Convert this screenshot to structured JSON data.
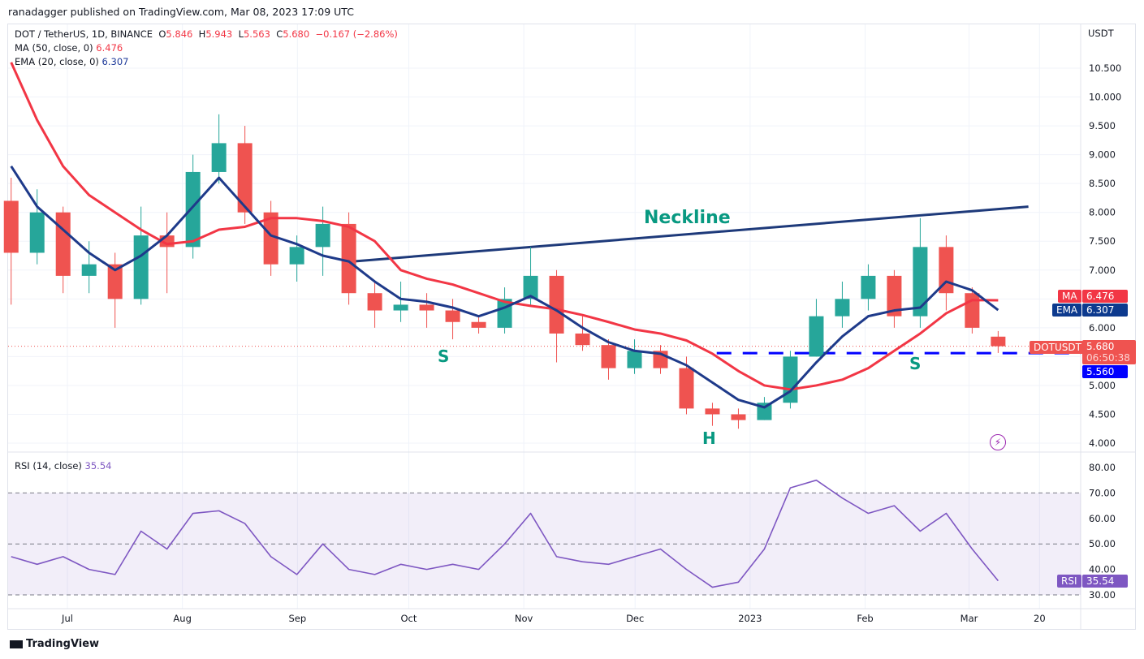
{
  "header": {
    "publisher": "ranadagger published on TradingView.com, Mar 08, 2023 17:09 UTC"
  },
  "legend": {
    "symbol": "DOT / TetherUS, 1D, BINANCE",
    "o_label": "O",
    "o": "5.846",
    "h_label": "H",
    "h": "5.943",
    "l_label": "L",
    "l": "5.563",
    "c_label": "C",
    "c": "5.680",
    "change": "−0.167 (−2.86%)",
    "ma_label": "MA (50, close, 0)",
    "ma_value": "6.476",
    "ema_label": "EMA (20, close, 0)",
    "ema_value": "6.307",
    "rsi_label": "RSI (14, close)",
    "rsi_value": "35.54"
  },
  "axis": {
    "currency": "USDT",
    "price_ticks": [
      "4.000",
      "4.500",
      "5.000",
      "6.000",
      "7.000",
      "7.500",
      "8.000",
      "8.500",
      "9.000",
      "9.500",
      "10.000",
      "10.500"
    ],
    "rsi_ticks": [
      "30.00",
      "40.00",
      "50.00",
      "60.00",
      "70.00",
      "80.00"
    ],
    "time_labels": [
      {
        "date": "2022-07-01",
        "label": "Jul"
      },
      {
        "date": "2022-08-01",
        "label": "Aug"
      },
      {
        "date": "2022-09-01",
        "label": "Sep"
      },
      {
        "date": "2022-10-01",
        "label": "Oct"
      },
      {
        "date": "2022-11-01",
        "label": "Nov"
      },
      {
        "date": "2022-12-01",
        "label": "Dec"
      },
      {
        "date": "2023-01-01",
        "label": "2023"
      },
      {
        "date": "2023-02-01",
        "label": "Feb"
      },
      {
        "date": "2023-03-01",
        "label": "Mar"
      },
      {
        "date": "2023-03-20",
        "label": "20"
      }
    ]
  },
  "tags": {
    "ma": "MA",
    "ma_value": "6.476",
    "ema": "EMA",
    "ema_value": "6.307",
    "symbol": "DOTUSDT",
    "price": "5.680",
    "countdown": "06:50:38",
    "support": "5.560",
    "rsi": "RSI",
    "rsi_value": "35.54"
  },
  "annotations": {
    "neckline": "Neckline",
    "s_left": "S",
    "h": "H",
    "s_right": "S"
  },
  "footer": {
    "brand": "TradingView"
  },
  "colors": {
    "up": "#26a69a",
    "down": "#ef5350",
    "ma": "#f23645",
    "ema": "#1e3a8a",
    "rsi": "#7e57c2",
    "support": "#0000ff",
    "neckline": "#1e3a7a",
    "annotation": "#089981"
  },
  "chart_data": {
    "type": "candlestick",
    "interval_shown": "weekly approximation of 1D candles",
    "ylim": [
      4.0,
      10.8
    ],
    "rsi_ylim": [
      28,
      84
    ],
    "weeks": [
      "2022-06-13",
      "2022-06-20",
      "2022-06-27",
      "2022-07-04",
      "2022-07-11",
      "2022-07-18",
      "2022-07-25",
      "2022-08-01",
      "2022-08-08",
      "2022-08-15",
      "2022-08-22",
      "2022-08-29",
      "2022-09-05",
      "2022-09-12",
      "2022-09-19",
      "2022-09-26",
      "2022-10-03",
      "2022-10-10",
      "2022-10-17",
      "2022-10-24",
      "2022-10-31",
      "2022-11-07",
      "2022-11-14",
      "2022-11-21",
      "2022-11-28",
      "2022-12-05",
      "2022-12-12",
      "2022-12-19",
      "2022-12-26",
      "2023-01-02",
      "2023-01-09",
      "2023-01-16",
      "2023-01-23",
      "2023-01-30",
      "2023-02-06",
      "2023-02-13",
      "2023-02-20",
      "2023-02-27",
      "2023-03-06"
    ],
    "ohlc": [
      [
        8.2,
        8.6,
        6.4,
        7.3
      ],
      [
        7.3,
        8.4,
        7.1,
        8.0
      ],
      [
        8.0,
        8.1,
        6.6,
        6.9
      ],
      [
        6.9,
        7.5,
        6.6,
        7.1
      ],
      [
        7.1,
        7.3,
        6.0,
        6.5
      ],
      [
        6.5,
        8.1,
        6.4,
        7.6
      ],
      [
        7.6,
        8.0,
        6.6,
        7.4
      ],
      [
        7.4,
        9.0,
        7.2,
        8.7
      ],
      [
        8.7,
        9.7,
        8.5,
        9.2
      ],
      [
        9.2,
        9.5,
        7.8,
        8.0
      ],
      [
        8.0,
        8.2,
        6.9,
        7.1
      ],
      [
        7.1,
        7.6,
        6.8,
        7.4
      ],
      [
        7.4,
        8.1,
        6.9,
        7.8
      ],
      [
        7.8,
        8.0,
        6.4,
        6.6
      ],
      [
        6.6,
        6.8,
        6.0,
        6.3
      ],
      [
        6.3,
        6.8,
        6.1,
        6.4
      ],
      [
        6.4,
        6.6,
        6.0,
        6.3
      ],
      [
        6.3,
        6.5,
        5.8,
        6.1
      ],
      [
        6.1,
        6.2,
        5.9,
        6.0
      ],
      [
        6.0,
        6.7,
        5.9,
        6.5
      ],
      [
        6.5,
        7.4,
        6.4,
        6.9
      ],
      [
        6.9,
        7.0,
        5.4,
        5.9
      ],
      [
        5.9,
        6.2,
        5.6,
        5.7
      ],
      [
        5.7,
        5.8,
        5.1,
        5.3
      ],
      [
        5.3,
        5.8,
        5.2,
        5.6
      ],
      [
        5.6,
        5.7,
        5.2,
        5.3
      ],
      [
        5.3,
        5.5,
        4.5,
        4.6
      ],
      [
        4.6,
        4.7,
        4.3,
        4.5
      ],
      [
        4.5,
        4.6,
        4.25,
        4.4
      ],
      [
        4.4,
        4.8,
        4.4,
        4.7
      ],
      [
        4.7,
        5.6,
        4.6,
        5.5
      ],
      [
        5.5,
        6.5,
        5.5,
        6.2
      ],
      [
        6.2,
        6.8,
        6.0,
        6.5
      ],
      [
        6.5,
        7.1,
        6.3,
        6.9
      ],
      [
        6.9,
        7.0,
        6.0,
        6.2
      ],
      [
        6.2,
        7.9,
        6.0,
        7.4
      ],
      [
        7.4,
        7.6,
        6.3,
        6.6
      ],
      [
        6.6,
        6.7,
        5.9,
        6.0
      ],
      [
        5.846,
        5.943,
        5.563,
        5.68
      ]
    ],
    "ma50": [
      10.6,
      9.6,
      8.8,
      8.3,
      8.0,
      7.7,
      7.45,
      7.5,
      7.7,
      7.75,
      7.9,
      7.9,
      7.85,
      7.75,
      7.5,
      7.0,
      6.85,
      6.75,
      6.6,
      6.45,
      6.38,
      6.32,
      6.22,
      6.1,
      5.97,
      5.9,
      5.78,
      5.55,
      5.25,
      5.0,
      4.93,
      5.0,
      5.1,
      5.3,
      5.6,
      5.9,
      6.25,
      6.48,
      6.476
    ],
    "ema20": [
      8.8,
      8.1,
      7.7,
      7.3,
      7.0,
      7.25,
      7.6,
      8.1,
      8.6,
      8.1,
      7.6,
      7.45,
      7.25,
      7.15,
      6.8,
      6.5,
      6.45,
      6.35,
      6.2,
      6.35,
      6.55,
      6.3,
      6.0,
      5.75,
      5.6,
      5.55,
      5.35,
      5.05,
      4.75,
      4.62,
      4.9,
      5.4,
      5.85,
      6.2,
      6.3,
      6.35,
      6.8,
      6.65,
      6.307
    ],
    "rsi": [
      45,
      42,
      45,
      40,
      38,
      55,
      48,
      62,
      63,
      58,
      45,
      38,
      50,
      40,
      38,
      42,
      40,
      42,
      40,
      50,
      62,
      45,
      43,
      42,
      45,
      48,
      40,
      33,
      35,
      48,
      72,
      75,
      68,
      62,
      65,
      55,
      62,
      48,
      35.54
    ],
    "rsi_bands": [
      30,
      50,
      70
    ],
    "neckline": {
      "from": {
        "date": "2022-09-14",
        "price": 7.14
      },
      "to": {
        "date": "2023-03-17",
        "price": 8.1
      }
    },
    "support": {
      "from": "2022-12-23",
      "price": 5.56
    },
    "last_price": 5.68
  }
}
